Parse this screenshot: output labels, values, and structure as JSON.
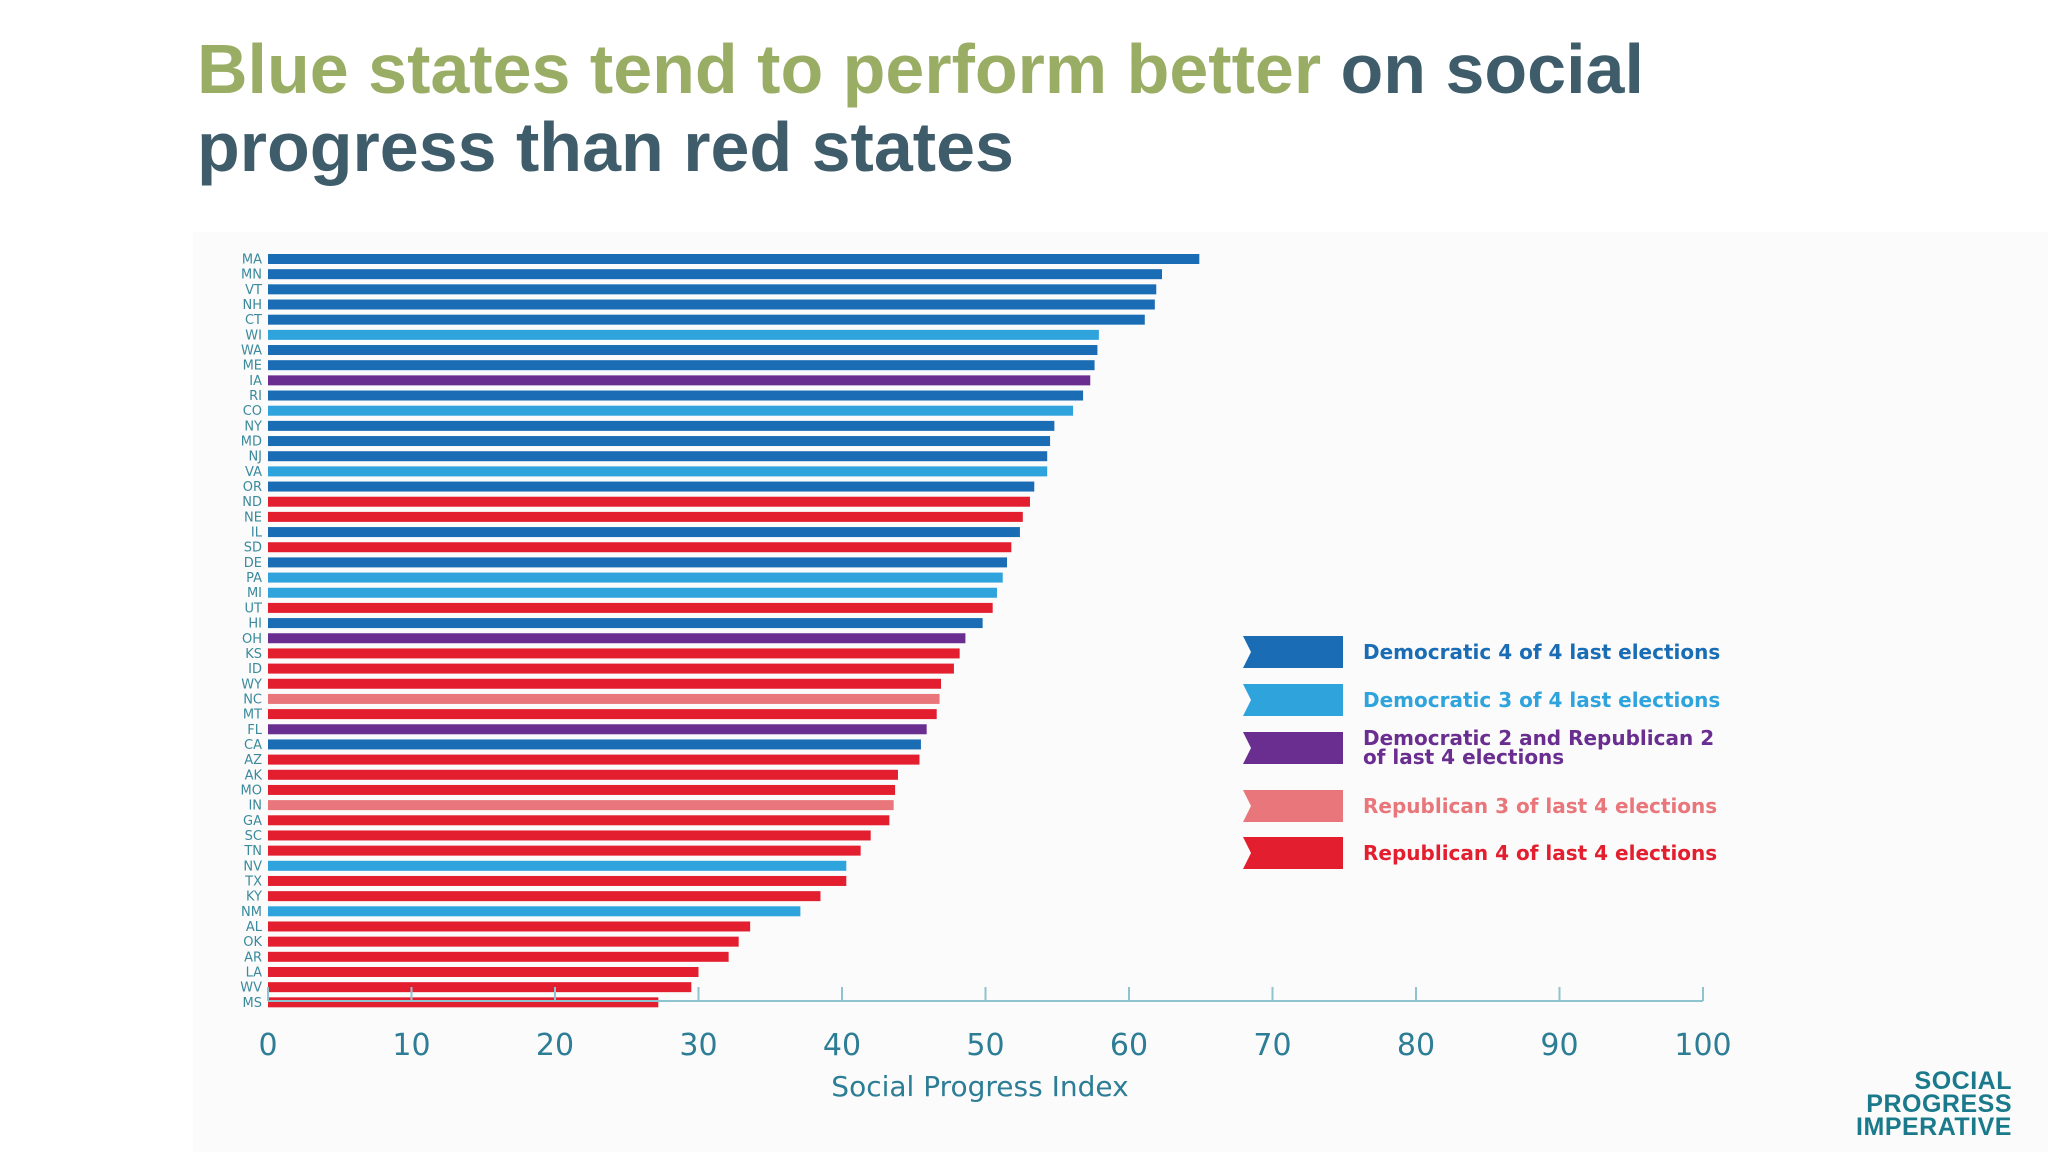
{
  "title": {
    "highlight": "Blue states tend to perform better",
    "rest": " on social progress than red states"
  },
  "logo": {
    "line1": "SOCIAL",
    "line2": "PROGRESS",
    "line3": "IMPERATIVE"
  },
  "colors": {
    "dem4": "#1a6db5",
    "dem3": "#2fa3dc",
    "split": "#6a2e91",
    "rep3": "#e8767a",
    "rep4": "#e31f2f",
    "axis": "#2c7d95",
    "title_main": "#3f5c6b",
    "title_highlight": "#9aad65"
  },
  "chart_data": {
    "type": "bar",
    "orientation": "horizontal",
    "xlabel": "Social Progress Index",
    "ylabel": "",
    "xlim": [
      0,
      100
    ],
    "xticks": [
      0,
      10,
      20,
      30,
      40,
      50,
      60,
      70,
      80,
      90,
      100
    ],
    "grid": false,
    "legend_placement": "right",
    "legend": [
      {
        "key": "dem4",
        "label": "Democratic 4 of 4 last elections"
      },
      {
        "key": "dem3",
        "label": "Democratic 3 of 4 last elections"
      },
      {
        "key": "split",
        "label": "Democratic 2 and Republican 2 of last 4 elections"
      },
      {
        "key": "rep3",
        "label": "Republican 3 of last 4 elections"
      },
      {
        "key": "rep4",
        "label": "Republican 4 of last 4 elections"
      }
    ],
    "categories": [
      "MA",
      "MN",
      "VT",
      "NH",
      "CT",
      "WI",
      "WA",
      "ME",
      "IA",
      "RI",
      "CO",
      "NY",
      "MD",
      "NJ",
      "VA",
      "OR",
      "ND",
      "NE",
      "IL",
      "SD",
      "DE",
      "PA",
      "MI",
      "UT",
      "HI",
      "OH",
      "KS",
      "ID",
      "WY",
      "NC",
      "MT",
      "FL",
      "CA",
      "AZ",
      "AK",
      "MO",
      "IN",
      "GA",
      "SC",
      "TN",
      "NV",
      "TX",
      "KY",
      "NM",
      "AL",
      "OK",
      "AR",
      "LA",
      "WV",
      "MS"
    ],
    "values": [
      64.9,
      62.3,
      61.9,
      61.8,
      61.1,
      57.9,
      57.8,
      57.6,
      57.3,
      56.8,
      56.1,
      54.8,
      54.5,
      54.3,
      54.3,
      53.4,
      53.1,
      52.6,
      52.4,
      51.8,
      51.5,
      51.2,
      50.8,
      50.5,
      49.8,
      48.6,
      48.2,
      47.8,
      46.9,
      46.8,
      46.6,
      45.9,
      45.5,
      45.4,
      43.9,
      43.7,
      43.6,
      43.3,
      42.0,
      41.3,
      40.3,
      40.3,
      38.5,
      37.1,
      33.6,
      32.8,
      32.1,
      30.0,
      29.5,
      27.2
    ],
    "groups": [
      "dem4",
      "dem4",
      "dem4",
      "dem4",
      "dem4",
      "dem3",
      "dem4",
      "dem4",
      "split",
      "dem4",
      "dem3",
      "dem4",
      "dem4",
      "dem4",
      "dem3",
      "dem4",
      "rep4",
      "rep4",
      "dem4",
      "rep4",
      "dem4",
      "dem3",
      "dem3",
      "rep4",
      "dem4",
      "split",
      "rep4",
      "rep4",
      "rep4",
      "rep3",
      "rep4",
      "split",
      "dem4",
      "rep4",
      "rep4",
      "rep4",
      "rep3",
      "rep4",
      "rep4",
      "rep4",
      "dem3",
      "rep4",
      "rep4",
      "dem3",
      "rep4",
      "rep4",
      "rep4",
      "rep4",
      "rep4",
      "rep4"
    ]
  }
}
